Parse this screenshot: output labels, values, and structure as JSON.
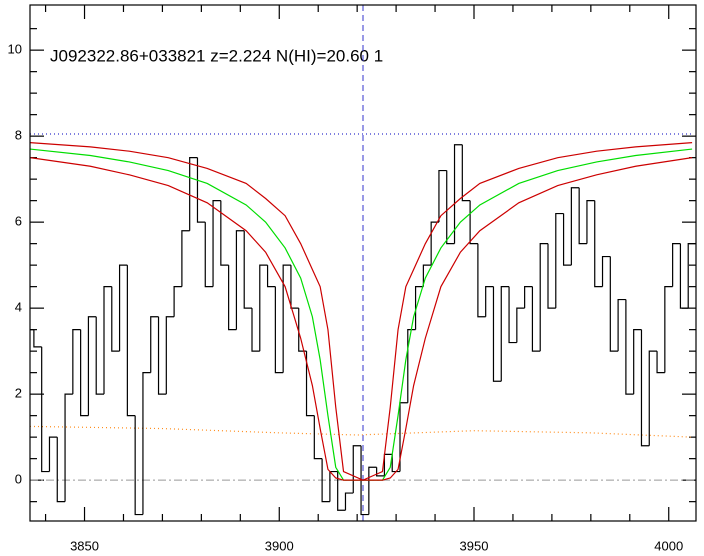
{
  "chart_data": {
    "type": "spectrum",
    "title": "J092322.86+033821 z=2.224 N(HI)=20.60 1",
    "xlim": [
      3836,
      4007
    ],
    "ylim": [
      -0.95,
      11.05
    ],
    "xticks": [
      3850,
      3900,
      3950,
      4000
    ],
    "yticks": [
      0,
      2,
      4,
      6,
      8,
      10
    ],
    "xminorticks": [
      3840,
      3860,
      3870,
      3880,
      3890,
      3910,
      3920,
      3930,
      3940,
      3960,
      3970,
      3980,
      3990
    ],
    "yminorticks": [
      -0.5,
      0.5,
      1,
      1.5,
      2.5,
      3,
      3.5,
      4.5,
      5,
      5.5,
      6.5,
      7,
      7.5,
      8.5,
      9,
      9.5,
      10.5
    ],
    "line_center": 3921.5,
    "baseline": 0,
    "spectrum": {
      "color": "#000000",
      "x": [
        3836,
        3838,
        3840,
        3842,
        3844,
        3846,
        3848,
        3850,
        3852,
        3854,
        3856,
        3858,
        3860,
        3862,
        3864,
        3866,
        3868,
        3870,
        3872,
        3874,
        3876,
        3878,
        3880,
        3882,
        3884,
        3886,
        3888,
        3890,
        3892,
        3894,
        3896,
        3898,
        3900,
        3902,
        3904,
        3906,
        3908,
        3910,
        3912,
        3914,
        3916,
        3918,
        3920,
        3922,
        3924,
        3926,
        3928,
        3930,
        3932,
        3934,
        3936,
        3938,
        3940,
        3942,
        3944,
        3946,
        3948,
        3950,
        3952,
        3954,
        3956,
        3958,
        3960,
        3962,
        3964,
        3966,
        3968,
        3970,
        3972,
        3974,
        3976,
        3978,
        3980,
        3982,
        3984,
        3986,
        3988,
        3990,
        3992,
        3994,
        3996,
        3998,
        4000,
        4002,
        4004,
        4006
      ],
      "values": [
        3.5,
        3.1,
        0.2,
        1.0,
        -0.5,
        2.0,
        3.5,
        1.5,
        3.8,
        2.0,
        4.5,
        3.0,
        5.0,
        1.5,
        -0.8,
        2.5,
        3.8,
        2.0,
        3.8,
        4.5,
        5.8,
        7.5,
        6.0,
        4.5,
        6.5,
        5.0,
        3.5,
        5.8,
        4.0,
        3.0,
        5.0,
        4.5,
        2.5,
        5.0,
        4.0,
        3.0,
        1.5,
        0.5,
        -0.5,
        0.2,
        -0.7,
        -0.3,
        0.8,
        -0.8,
        0.3,
        0.1,
        0.6,
        0.2,
        1.8,
        3.5,
        4.5,
        5.0,
        6.0,
        7.2,
        5.5,
        7.8,
        6.5,
        5.5,
        3.8,
        4.5,
        2.3,
        4.5,
        3.2,
        4.0,
        4.5,
        3.0,
        5.5,
        4.0,
        6.2,
        5.0,
        6.8,
        5.5,
        6.5,
        4.5,
        5.2,
        3.0,
        4.2,
        2.0,
        3.5,
        0.8,
        3.0,
        2.5,
        4.5,
        5.5,
        4.0,
        5.5
      ]
    },
    "error": {
      "color": "#ff8c1a",
      "x": [
        3836,
        3870,
        3900,
        3920,
        3950,
        3980,
        4006
      ],
      "values": [
        1.25,
        1.2,
        1.1,
        1.05,
        1.15,
        1.1,
        1.0
      ]
    },
    "continuum": {
      "color": "#3333cc",
      "x": [
        3836,
        4006
      ],
      "values": [
        8.05,
        8.05
      ]
    },
    "model_x": [
      3836,
      3851.5,
      3861.5,
      3871.5,
      3881.5,
      3891.5,
      3896.5,
      3901.5,
      3905.5,
      3908.5,
      3910.5,
      3912.5,
      3914.5,
      3916.5,
      3921.5,
      3926.5,
      3928.5,
      3930.5,
      3932.5,
      3934.5,
      3937.5,
      3941.5,
      3946.5,
      3951.5,
      3961.5,
      3971.5,
      3981.5,
      3991.5,
      4006
    ],
    "models": [
      {
        "color": "#00dd00",
        "values": [
          7.7,
          7.55,
          7.4,
          7.2,
          6.9,
          6.4,
          6.0,
          5.4,
          4.7,
          3.8,
          2.8,
          1.5,
          0.3,
          0,
          0,
          0,
          0.3,
          1.5,
          2.8,
          3.8,
          4.7,
          5.4,
          6.0,
          6.4,
          6.9,
          7.2,
          7.4,
          7.55,
          7.7
        ]
      },
      {
        "color": "#cc0000",
        "values": [
          7.85,
          7.75,
          7.65,
          7.5,
          7.25,
          6.9,
          6.55,
          6.15,
          5.5,
          4.9,
          4.5,
          3.5,
          1.7,
          0.2,
          0,
          0.2,
          1.7,
          3.5,
          4.5,
          4.9,
          5.5,
          6.15,
          6.55,
          6.9,
          7.25,
          7.5,
          7.65,
          7.75,
          7.85
        ]
      },
      {
        "color": "#cc0000",
        "values": [
          7.5,
          7.3,
          7.1,
          6.85,
          6.45,
          5.8,
          5.3,
          4.5,
          3.3,
          2.2,
          1.2,
          0.25,
          0.05,
          0,
          0,
          0,
          0.05,
          0.25,
          1.2,
          2.2,
          3.3,
          4.5,
          5.3,
          5.8,
          6.45,
          6.85,
          7.1,
          7.3,
          7.5
        ]
      }
    ]
  }
}
